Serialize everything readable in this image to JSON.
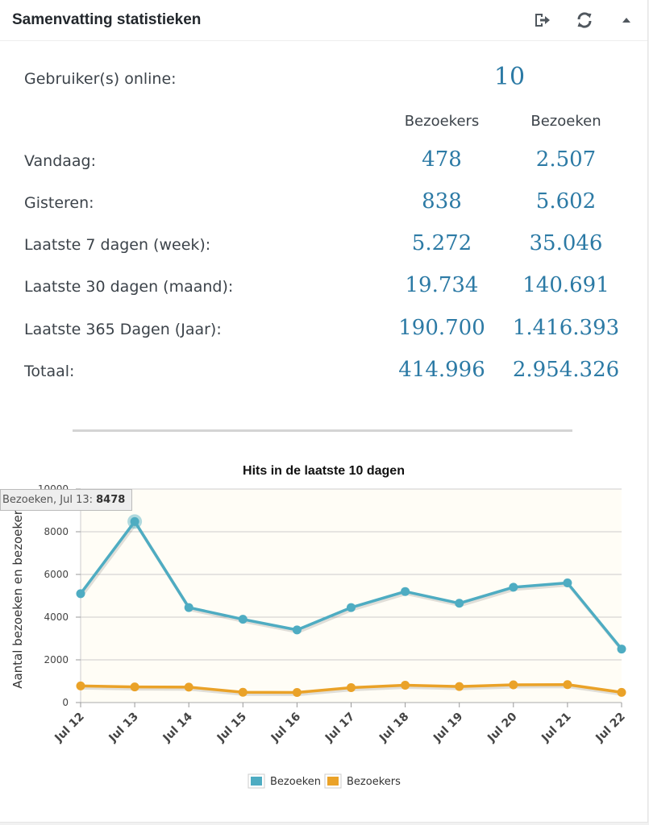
{
  "widget": {
    "title": "Samenvatting statistieken",
    "icons": [
      "export-icon",
      "refresh-icon",
      "collapse-arrow-icon"
    ]
  },
  "online": {
    "label": "Gebruiker(s) online:",
    "value": "10"
  },
  "columns": {
    "visitors": "Bezoekers",
    "visits": "Bezoeken"
  },
  "rows": [
    {
      "label": "Vandaag:",
      "visitors": "478",
      "visits": "2.507"
    },
    {
      "label": "Gisteren:",
      "visitors": "838",
      "visits": "5.602"
    },
    {
      "label": "Laatste 7 dagen (week):",
      "visitors": "5.272",
      "visits": "35.046"
    },
    {
      "label": "Laatste 30 dagen (maand):",
      "visitors": "19.734",
      "visits": "140.691"
    },
    {
      "label": "Laatste 365 Dagen (Jaar):",
      "visitors": "190.700",
      "visits": "1.416.393"
    },
    {
      "label": "Totaal:",
      "visitors": "414.996",
      "visits": "2.954.326"
    }
  ],
  "tooltip": {
    "text": "Bezoeken, Jul 13: ",
    "value": "8478"
  },
  "chart_data": {
    "type": "line",
    "title": "Hits in de laatste 10 dagen",
    "xlabel": "",
    "ylabel": "Aantal bezoeken en bezoekers",
    "categories": [
      "Jul 12",
      "Jul 13",
      "Jul 14",
      "Jul 15",
      "Jul 16",
      "Jul 17",
      "Jul 18",
      "Jul 19",
      "Jul 20",
      "Jul 21",
      "Jul 22"
    ],
    "ylim": [
      0,
      10000
    ],
    "yticks": [
      0,
      2000,
      4000,
      6000,
      8000,
      10000
    ],
    "grid": true,
    "legend": "bottom",
    "series": [
      {
        "name": "Bezoeken",
        "color": "#4eacc2",
        "values": [
          5100,
          8478,
          4450,
          3900,
          3400,
          4450,
          5200,
          4650,
          5400,
          5602,
          2507
        ]
      },
      {
        "name": "Bezoekers",
        "color": "#eaa228",
        "values": [
          780,
          730,
          720,
          480,
          470,
          700,
          810,
          750,
          830,
          838,
          478
        ]
      }
    ]
  }
}
